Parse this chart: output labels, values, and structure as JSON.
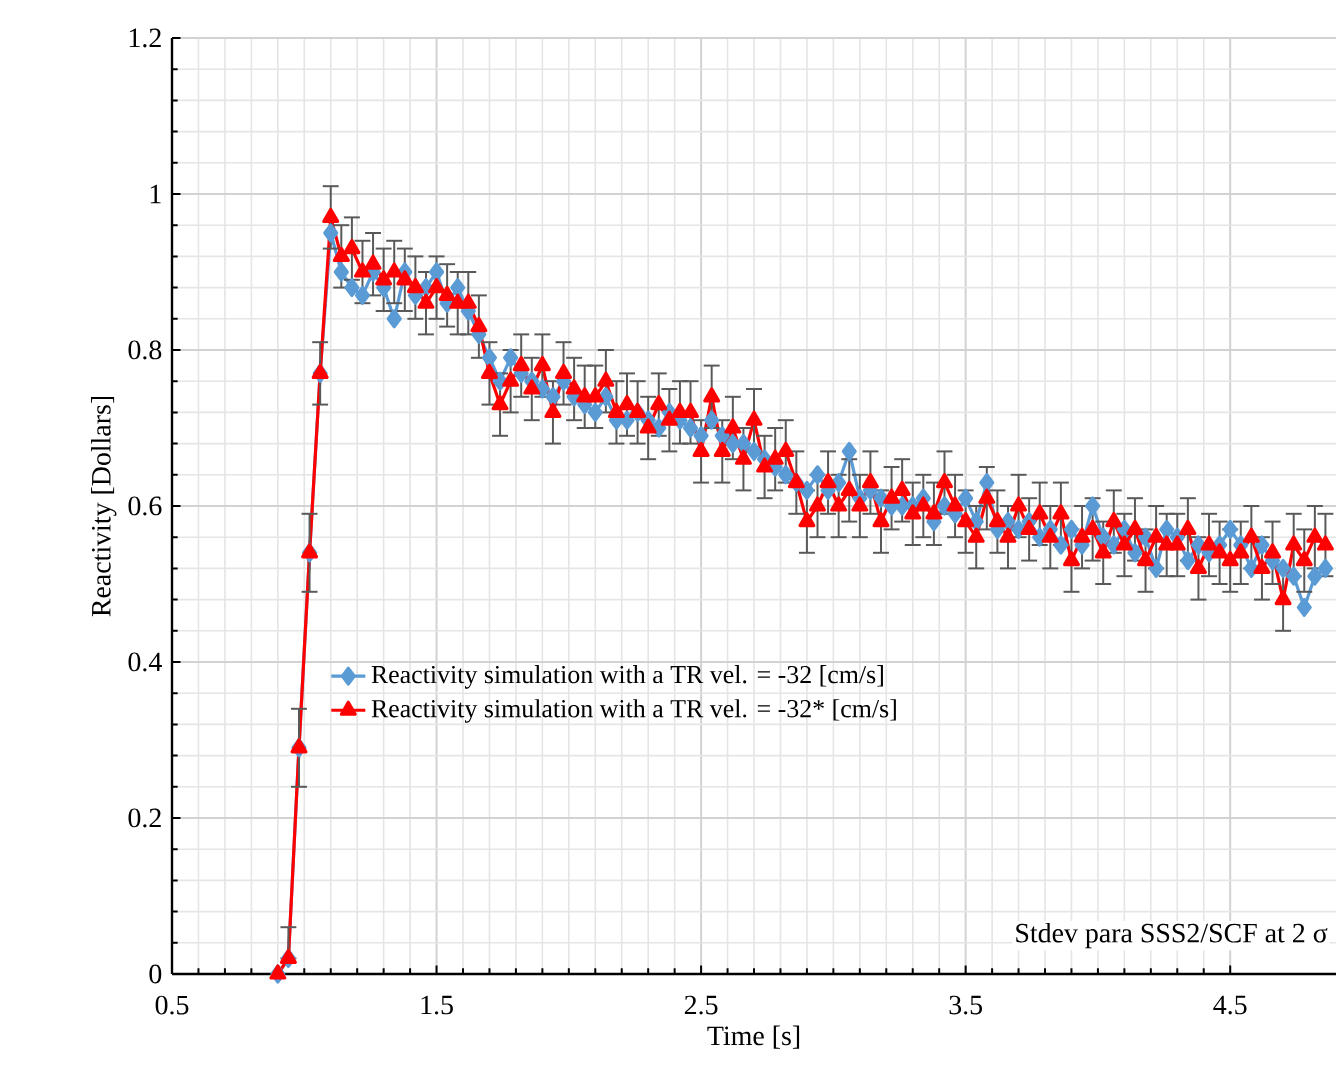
{
  "chart_data": {
    "type": "line",
    "xlabel": "Time [s]",
    "ylabel": "Reactivity [Dollars]",
    "annotations": [
      "Stdev para SSS2/SCF  at 2 σ"
    ],
    "x": [
      0.9,
      0.94,
      0.98,
      1.02,
      1.06,
      1.1,
      1.14,
      1.18,
      1.22,
      1.26,
      1.3,
      1.34,
      1.38,
      1.42,
      1.46,
      1.5,
      1.54,
      1.58,
      1.62,
      1.66,
      1.7,
      1.74,
      1.78,
      1.82,
      1.86,
      1.9,
      1.94,
      1.98,
      2.02,
      2.06,
      2.1,
      2.14,
      2.18,
      2.22,
      2.26,
      2.3,
      2.34,
      2.38,
      2.42,
      2.46,
      2.5,
      2.54,
      2.58,
      2.62,
      2.66,
      2.7,
      2.74,
      2.78,
      2.82,
      2.86,
      2.9,
      2.94,
      2.98,
      3.02,
      3.06,
      3.1,
      3.14,
      3.18,
      3.22,
      3.26,
      3.3,
      3.34,
      3.38,
      3.42,
      3.46,
      3.5,
      3.54,
      3.58,
      3.62,
      3.66,
      3.7,
      3.74,
      3.78,
      3.82,
      3.86,
      3.9,
      3.94,
      3.98,
      4.02,
      4.06,
      4.1,
      4.14,
      4.18,
      4.22,
      4.26,
      4.3,
      4.34,
      4.38,
      4.42,
      4.46,
      4.5,
      4.54,
      4.58,
      4.62,
      4.66,
      4.7,
      4.74,
      4.78,
      4.82,
      4.86
    ],
    "series": [
      {
        "name": "Reactivity simulation  with a TR vel. = -32 [cm/s]",
        "color": "#5b9bd5",
        "marker": "diamond",
        "values": [
          0,
          0.02,
          0.29,
          0.54,
          0.77,
          0.95,
          0.9,
          0.88,
          0.87,
          0.9,
          0.88,
          0.84,
          0.9,
          0.87,
          0.88,
          0.9,
          0.86,
          0.88,
          0.85,
          0.82,
          0.79,
          0.76,
          0.79,
          0.77,
          0.76,
          0.75,
          0.74,
          0.76,
          0.74,
          0.73,
          0.72,
          0.74,
          0.71,
          0.71,
          0.72,
          0.71,
          0.7,
          0.72,
          0.71,
          0.7,
          0.69,
          0.71,
          0.69,
          0.68,
          0.68,
          0.67,
          0.66,
          0.65,
          0.64,
          0.63,
          0.62,
          0.64,
          0.62,
          0.63,
          0.67,
          0.61,
          0.62,
          0.61,
          0.6,
          0.6,
          0.6,
          0.61,
          0.58,
          0.6,
          0.59,
          0.61,
          0.58,
          0.63,
          0.57,
          0.58,
          0.57,
          0.58,
          0.56,
          0.57,
          0.55,
          0.57,
          0.55,
          0.6,
          0.56,
          0.55,
          0.57,
          0.54,
          0.56,
          0.52,
          0.57,
          0.56,
          0.53,
          0.55,
          0.54,
          0.55,
          0.57,
          0.55,
          0.52,
          0.55,
          0.53,
          0.52,
          0.51,
          0.47,
          0.51,
          0.52
        ]
      },
      {
        "name": "Reactivity simulation  with a TR vel. = -32* [cm/s]",
        "color": "#ff0000",
        "marker": "triangle",
        "values": [
          0,
          0.02,
          0.29,
          0.54,
          0.77,
          0.97,
          0.92,
          0.93,
          0.9,
          0.91,
          0.89,
          0.9,
          0.89,
          0.88,
          0.86,
          0.88,
          0.87,
          0.86,
          0.86,
          0.83,
          0.77,
          0.73,
          0.76,
          0.78,
          0.75,
          0.78,
          0.72,
          0.77,
          0.75,
          0.74,
          0.74,
          0.76,
          0.72,
          0.73,
          0.72,
          0.7,
          0.73,
          0.71,
          0.72,
          0.72,
          0.67,
          0.74,
          0.67,
          0.7,
          0.66,
          0.71,
          0.65,
          0.66,
          0.67,
          0.63,
          0.58,
          0.6,
          0.63,
          0.6,
          0.62,
          0.6,
          0.63,
          0.58,
          0.61,
          0.62,
          0.59,
          0.6,
          0.59,
          0.63,
          0.6,
          0.58,
          0.56,
          0.61,
          0.58,
          0.56,
          0.6,
          0.57,
          0.59,
          0.56,
          0.59,
          0.53,
          0.56,
          0.57,
          0.54,
          0.58,
          0.55,
          0.57,
          0.53,
          0.56,
          0.55,
          0.55,
          0.57,
          0.52,
          0.55,
          0.54,
          0.53,
          0.54,
          0.56,
          0.52,
          0.54,
          0.48,
          0.55,
          0.53,
          0.56,
          0.55
        ],
        "errors": [
          null,
          [
            0.02,
            0.06
          ],
          0.05,
          0.05,
          0.04,
          0.04,
          0.04,
          0.04,
          0.04,
          0.04,
          0.04,
          0.04,
          0.04,
          0.04,
          0.04,
          0.04,
          0.04,
          0.04,
          0.04,
          0.04,
          0.04,
          0.04,
          0.04,
          0.04,
          0.04,
          0.04,
          0.04,
          0.04,
          0.04,
          0.04,
          0.04,
          0.04,
          0.04,
          0.04,
          0.04,
          0.04,
          0.04,
          0.04,
          0.04,
          0.04,
          0.04,
          0.04,
          0.04,
          0.04,
          0.04,
          0.04,
          0.04,
          0.04,
          0.04,
          0.04,
          0.04,
          0.04,
          0.04,
          0.04,
          0.04,
          0.04,
          0.04,
          0.04,
          0.04,
          0.04,
          0.04,
          0.04,
          0.04,
          0.04,
          0.04,
          0.04,
          0.04,
          0.04,
          0.04,
          0.04,
          0.04,
          0.04,
          0.04,
          0.04,
          0.04,
          0.04,
          0.04,
          0.04,
          0.04,
          0.04,
          0.04,
          0.04,
          0.04,
          0.04,
          0.04,
          0.04,
          0.04,
          0.04,
          0.04,
          0.04,
          0.04,
          0.04,
          0.04,
          0.04,
          0.04,
          0.04,
          0.04,
          0.04,
          0.04,
          0.04
        ]
      }
    ],
    "xlim": [
      0.5,
      4.9
    ],
    "xticks": [
      0.5,
      1.5,
      2.5,
      3.5,
      4.5
    ],
    "ylim": [
      0,
      1.2
    ],
    "yticks": [
      0,
      0.2,
      0.4,
      0.6,
      0.8,
      1,
      1.2
    ],
    "grid": true,
    "legend": "left",
    "line_style": "solid"
  }
}
